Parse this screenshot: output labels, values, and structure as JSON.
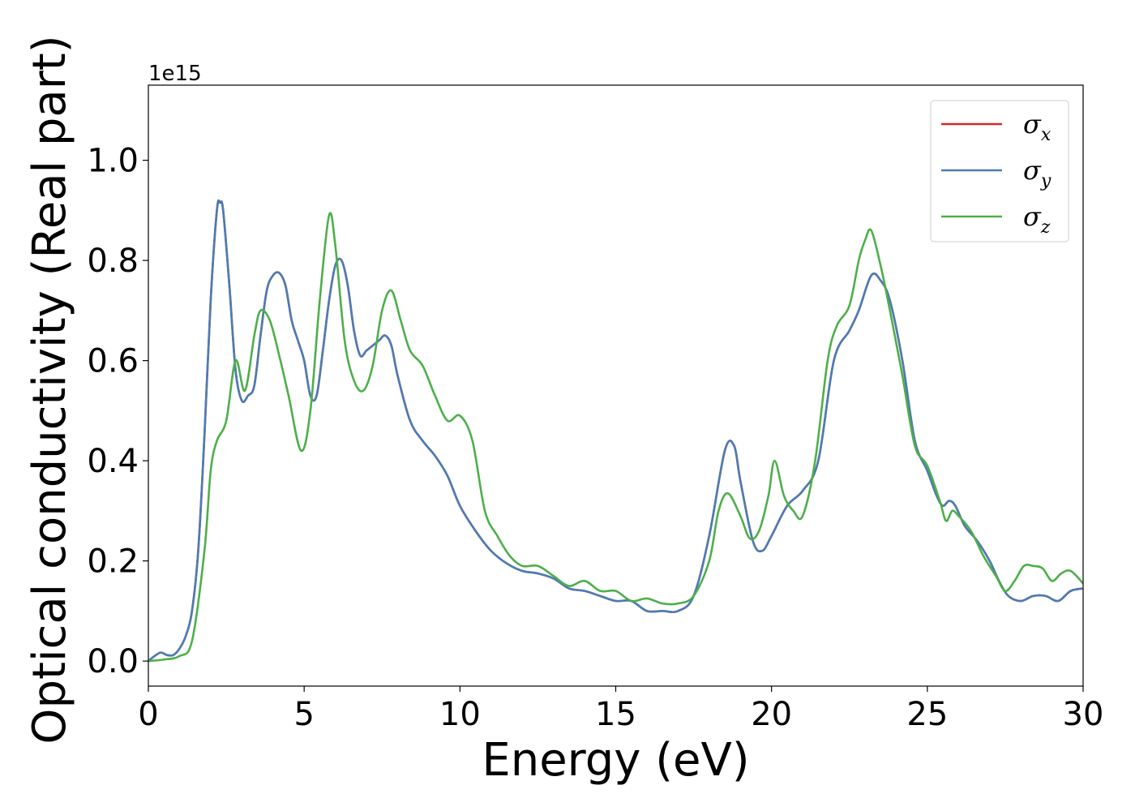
{
  "chart_data": {
    "type": "line",
    "xlabel": "Energy (eV)",
    "ylabel": "Optical conductivity (Real part)",
    "y_offset_text": "1e15",
    "xlim": [
      0,
      30
    ],
    "ylim": [
      -0.05,
      1.15
    ],
    "xticks": [
      0,
      5,
      10,
      15,
      20,
      25,
      30
    ],
    "xtick_labels": [
      "0",
      "5",
      "10",
      "15",
      "20",
      "25",
      "30"
    ],
    "yticks": [
      0.0,
      0.2,
      0.4,
      0.6,
      0.8,
      1.0
    ],
    "ytick_labels": [
      "0.0",
      "0.2",
      "0.4",
      "0.6",
      "0.8",
      "1.0"
    ],
    "grid": false,
    "legend_position": "top-right",
    "series": [
      {
        "name": "σx",
        "label_base": "σ",
        "label_sub": "x",
        "color": "#d62728",
        "x": [
          0,
          0.2,
          0.4,
          0.6,
          0.8,
          1.0,
          1.2,
          1.4,
          1.6,
          1.8,
          2.0,
          2.2,
          2.3,
          2.4,
          2.6,
          2.8,
          3.0,
          3.2,
          3.4,
          3.6,
          3.8,
          4.0,
          4.2,
          4.4,
          4.6,
          4.8,
          5.0,
          5.2,
          5.4,
          5.6,
          5.8,
          6.0,
          6.2,
          6.4,
          6.6,
          6.8,
          7.0,
          7.2,
          7.4,
          7.6,
          7.8,
          8.0,
          8.4,
          8.8,
          9.2,
          9.6,
          10.0,
          10.5,
          11.0,
          11.5,
          12.0,
          12.5,
          13.0,
          13.5,
          14.0,
          14.5,
          15.0,
          15.5,
          16.0,
          16.5,
          17.0,
          17.5,
          18.0,
          18.5,
          18.8,
          19.0,
          19.4,
          19.7,
          20.0,
          20.5,
          21.0,
          21.5,
          22.0,
          22.5,
          22.8,
          23.2,
          23.5,
          23.8,
          24.2,
          24.6,
          25.0,
          25.3,
          25.5,
          25.7,
          25.9,
          26.2,
          26.6,
          27.0,
          27.3,
          27.6,
          28.0,
          28.4,
          28.8,
          29.2,
          29.6,
          30.0
        ],
        "y": [
          0.0,
          0.01,
          0.017,
          0.012,
          0.012,
          0.025,
          0.05,
          0.1,
          0.22,
          0.45,
          0.72,
          0.9,
          0.915,
          0.9,
          0.75,
          0.58,
          0.52,
          0.53,
          0.55,
          0.65,
          0.74,
          0.77,
          0.775,
          0.75,
          0.68,
          0.64,
          0.6,
          0.53,
          0.53,
          0.62,
          0.72,
          0.79,
          0.8,
          0.75,
          0.66,
          0.61,
          0.62,
          0.63,
          0.64,
          0.65,
          0.63,
          0.57,
          0.48,
          0.44,
          0.41,
          0.37,
          0.31,
          0.26,
          0.22,
          0.195,
          0.18,
          0.175,
          0.165,
          0.145,
          0.14,
          0.13,
          0.12,
          0.12,
          0.1,
          0.1,
          0.1,
          0.13,
          0.25,
          0.42,
          0.43,
          0.36,
          0.24,
          0.22,
          0.25,
          0.31,
          0.34,
          0.4,
          0.6,
          0.66,
          0.7,
          0.77,
          0.76,
          0.72,
          0.6,
          0.44,
          0.38,
          0.33,
          0.31,
          0.32,
          0.31,
          0.27,
          0.24,
          0.2,
          0.16,
          0.13,
          0.12,
          0.13,
          0.13,
          0.12,
          0.14,
          0.145
        ]
      },
      {
        "name": "σy",
        "label_base": "σ",
        "label_sub": "y",
        "color": "#4a7db5",
        "x": [
          0,
          0.2,
          0.4,
          0.6,
          0.8,
          1.0,
          1.2,
          1.4,
          1.6,
          1.8,
          2.0,
          2.2,
          2.3,
          2.4,
          2.6,
          2.8,
          3.0,
          3.2,
          3.4,
          3.6,
          3.8,
          4.0,
          4.2,
          4.4,
          4.6,
          4.8,
          5.0,
          5.2,
          5.4,
          5.6,
          5.8,
          6.0,
          6.2,
          6.4,
          6.6,
          6.8,
          7.0,
          7.2,
          7.4,
          7.6,
          7.8,
          8.0,
          8.4,
          8.8,
          9.2,
          9.6,
          10.0,
          10.5,
          11.0,
          11.5,
          12.0,
          12.5,
          13.0,
          13.5,
          14.0,
          14.5,
          15.0,
          15.5,
          16.0,
          16.5,
          17.0,
          17.5,
          18.0,
          18.5,
          18.8,
          19.0,
          19.4,
          19.7,
          20.0,
          20.5,
          21.0,
          21.5,
          22.0,
          22.5,
          22.8,
          23.2,
          23.5,
          23.8,
          24.2,
          24.6,
          25.0,
          25.3,
          25.5,
          25.7,
          25.9,
          26.2,
          26.6,
          27.0,
          27.3,
          27.6,
          28.0,
          28.4,
          28.8,
          29.2,
          29.6,
          30.0
        ],
        "y": [
          0.0,
          0.01,
          0.017,
          0.012,
          0.012,
          0.025,
          0.05,
          0.1,
          0.22,
          0.45,
          0.72,
          0.9,
          0.915,
          0.9,
          0.75,
          0.58,
          0.52,
          0.53,
          0.55,
          0.65,
          0.74,
          0.77,
          0.775,
          0.75,
          0.68,
          0.64,
          0.6,
          0.53,
          0.53,
          0.62,
          0.72,
          0.79,
          0.8,
          0.75,
          0.66,
          0.61,
          0.62,
          0.63,
          0.64,
          0.65,
          0.63,
          0.57,
          0.48,
          0.44,
          0.41,
          0.37,
          0.31,
          0.26,
          0.22,
          0.195,
          0.18,
          0.175,
          0.165,
          0.145,
          0.14,
          0.13,
          0.12,
          0.12,
          0.1,
          0.1,
          0.1,
          0.13,
          0.25,
          0.42,
          0.43,
          0.36,
          0.24,
          0.22,
          0.25,
          0.31,
          0.34,
          0.4,
          0.6,
          0.66,
          0.7,
          0.77,
          0.76,
          0.72,
          0.6,
          0.44,
          0.38,
          0.33,
          0.31,
          0.32,
          0.31,
          0.27,
          0.24,
          0.2,
          0.16,
          0.13,
          0.12,
          0.13,
          0.13,
          0.12,
          0.14,
          0.145
        ]
      },
      {
        "name": "σz",
        "label_base": "σ",
        "label_sub": "z",
        "color": "#4daf4a",
        "x": [
          0,
          0.5,
          1.0,
          1.4,
          1.8,
          2.0,
          2.2,
          2.5,
          2.8,
          3.1,
          3.4,
          3.6,
          3.9,
          4.2,
          4.5,
          4.9,
          5.2,
          5.5,
          5.8,
          6.0,
          6.3,
          6.6,
          6.9,
          7.2,
          7.5,
          7.8,
          8.1,
          8.4,
          8.8,
          9.2,
          9.6,
          10.0,
          10.4,
          10.8,
          11.2,
          11.6,
          12.0,
          12.5,
          13.0,
          13.5,
          14.0,
          14.5,
          15.0,
          15.5,
          16.0,
          16.5,
          17.0,
          17.5,
          18.0,
          18.3,
          18.6,
          19.0,
          19.3,
          19.6,
          19.9,
          20.1,
          20.4,
          20.7,
          21.0,
          21.4,
          21.8,
          22.1,
          22.5,
          22.8,
          23.0,
          23.2,
          23.5,
          23.8,
          24.2,
          24.6,
          25.0,
          25.4,
          25.6,
          25.8,
          26.0,
          26.4,
          26.8,
          27.2,
          27.5,
          27.8,
          28.1,
          28.4,
          28.7,
          29.0,
          29.3,
          29.6,
          30.0
        ],
        "y": [
          0.0,
          0.003,
          0.01,
          0.04,
          0.22,
          0.38,
          0.44,
          0.48,
          0.6,
          0.54,
          0.65,
          0.7,
          0.68,
          0.61,
          0.53,
          0.42,
          0.5,
          0.72,
          0.89,
          0.83,
          0.64,
          0.56,
          0.54,
          0.59,
          0.7,
          0.74,
          0.68,
          0.62,
          0.59,
          0.53,
          0.48,
          0.49,
          0.44,
          0.3,
          0.25,
          0.21,
          0.19,
          0.19,
          0.17,
          0.15,
          0.16,
          0.14,
          0.14,
          0.12,
          0.125,
          0.115,
          0.115,
          0.13,
          0.2,
          0.3,
          0.335,
          0.29,
          0.245,
          0.26,
          0.33,
          0.4,
          0.33,
          0.3,
          0.29,
          0.4,
          0.6,
          0.67,
          0.71,
          0.8,
          0.84,
          0.86,
          0.79,
          0.7,
          0.57,
          0.43,
          0.39,
          0.32,
          0.28,
          0.3,
          0.29,
          0.26,
          0.21,
          0.17,
          0.14,
          0.16,
          0.19,
          0.19,
          0.185,
          0.16,
          0.175,
          0.18,
          0.155
        ]
      }
    ]
  }
}
